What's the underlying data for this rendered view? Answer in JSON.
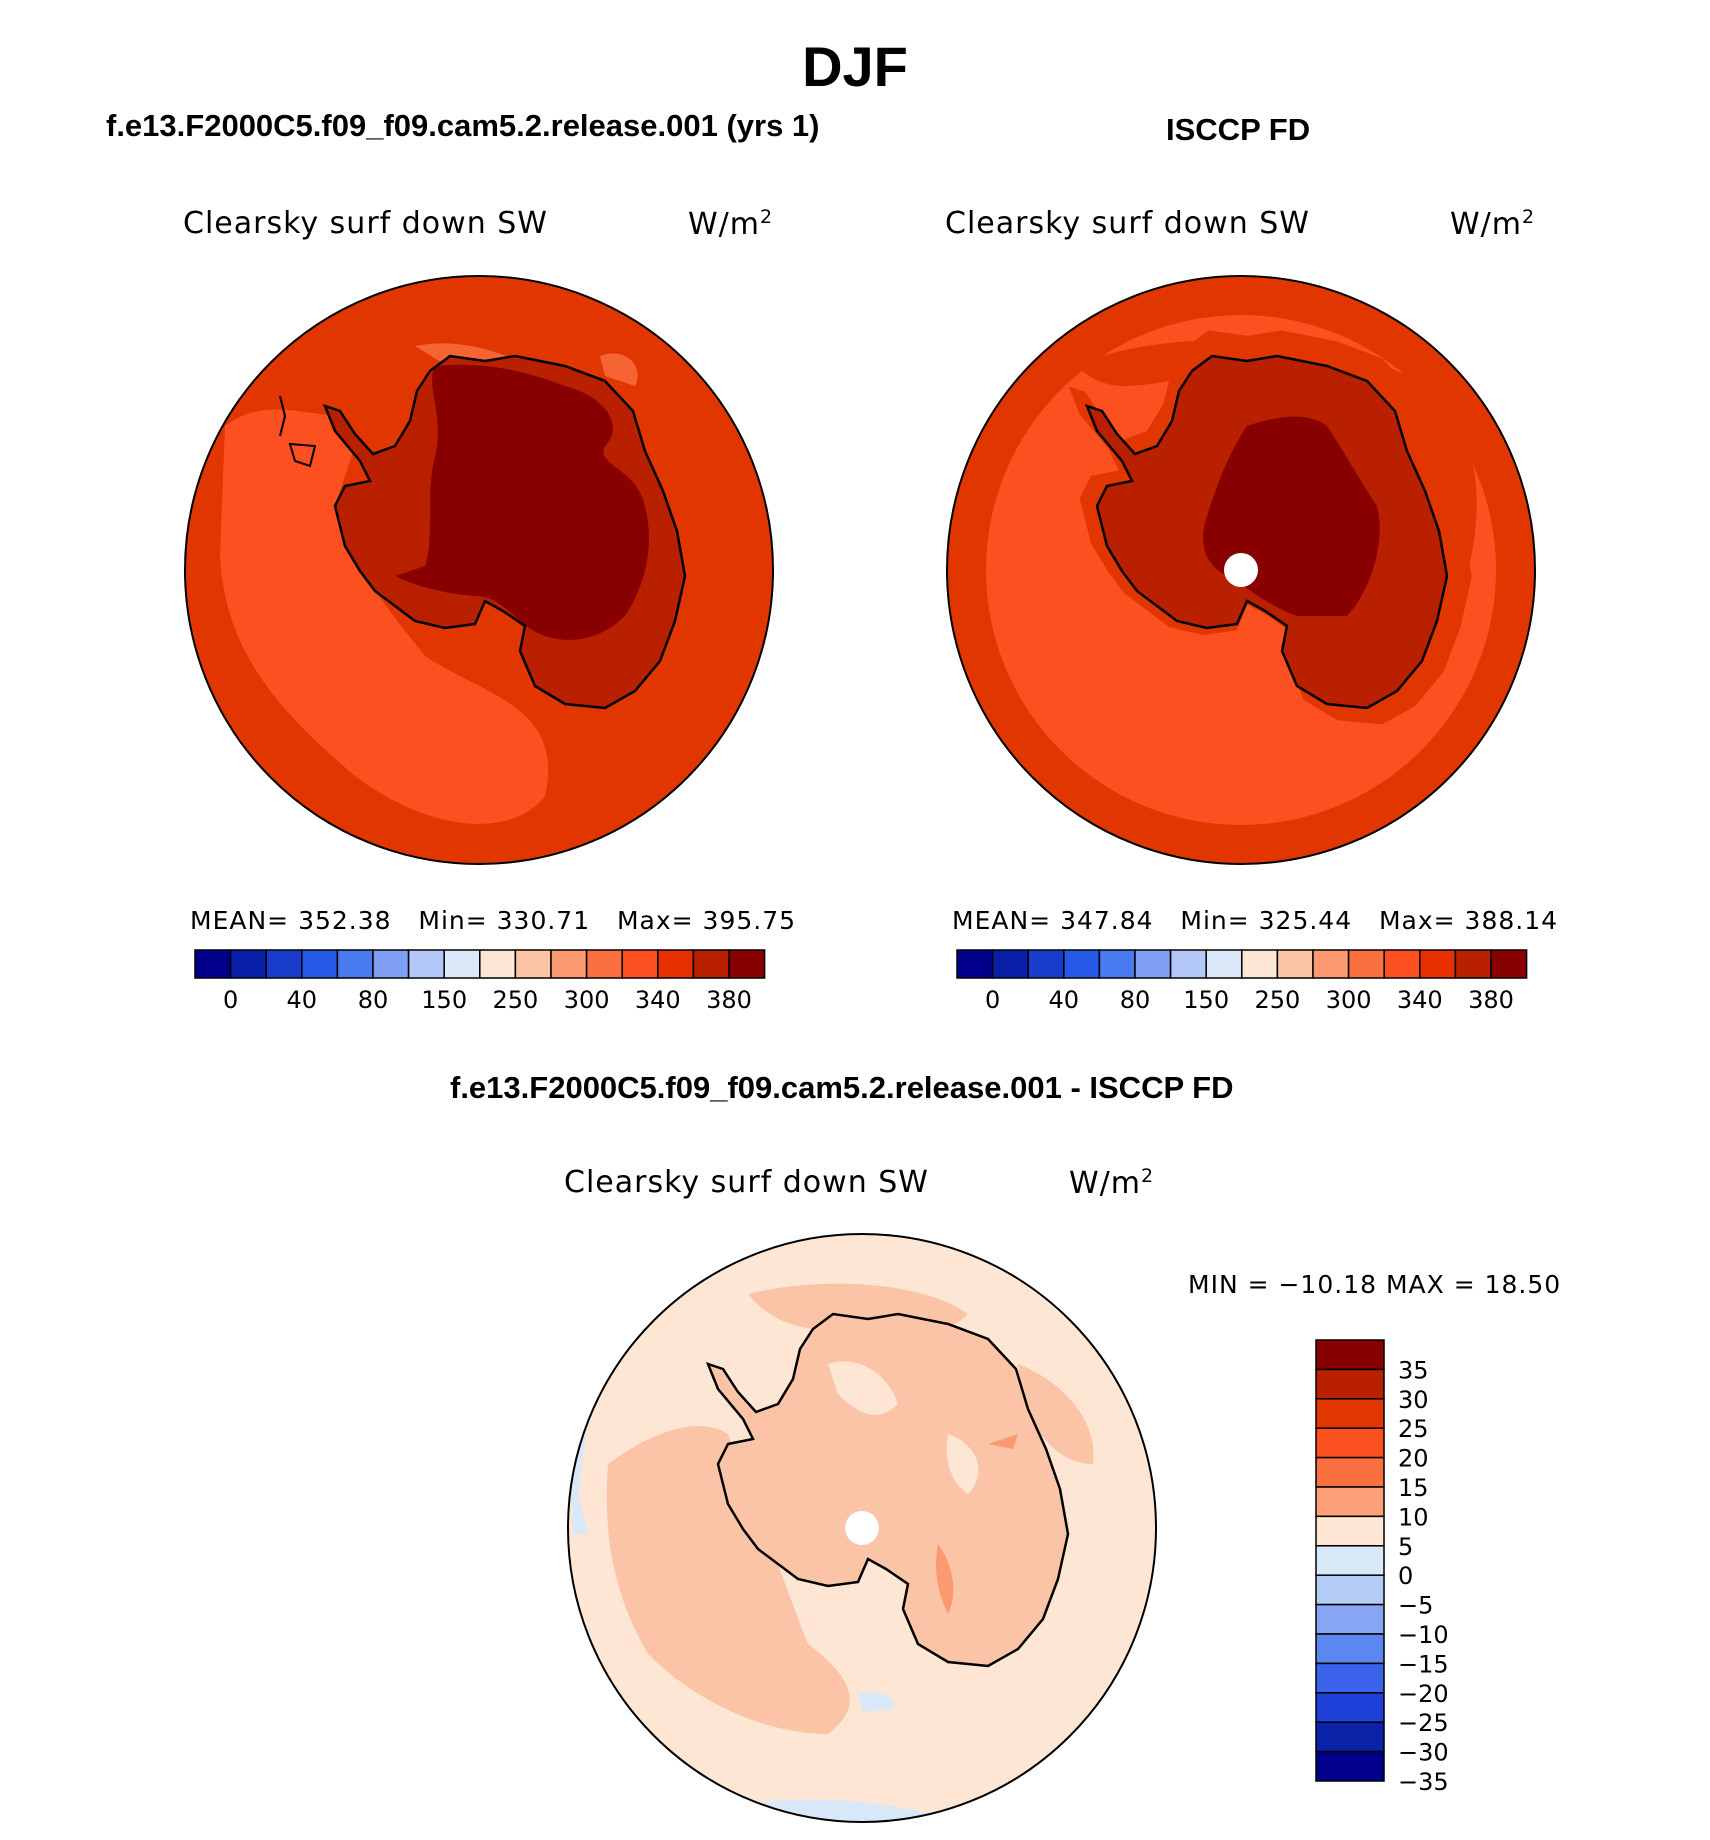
{
  "title": "DJF",
  "panels": [
    {
      "id": "model",
      "title": "f.e13.F2000C5.f09_f09.cam5.2.release.001 (yrs 1)",
      "variable": "Clearsky surf down SW",
      "units": "W/m",
      "units_sup": "2",
      "stats": {
        "mean": "MEAN= 352.38",
        "min": "Min= 330.71",
        "max": "Max= 395.75"
      }
    },
    {
      "id": "obs",
      "title": "ISCCP FD",
      "variable": "Clearsky surf down SW",
      "units": "W/m",
      "units_sup": "2",
      "stats": {
        "mean": "MEAN= 347.84",
        "min": "Min= 325.44",
        "max": "Max= 388.14"
      }
    },
    {
      "id": "diff",
      "title": "f.e13.F2000C5.f09_f09.cam5.2.release.001 - ISCCP FD",
      "variable": "Clearsky surf down SW",
      "units": "W/m",
      "units_sup": "2",
      "stats": {
        "minmax": "MIN = −10.18 MAX =  18.50"
      }
    }
  ],
  "colorbar_top": {
    "colors": [
      "#00008b",
      "#0a1fa8",
      "#1a3ccc",
      "#2659e8",
      "#4a7af0",
      "#7f9ff5",
      "#b3c8f7",
      "#dbe8fa",
      "#fde6d4",
      "#fcc4a6",
      "#fb9a70",
      "#fb7040",
      "#fd5020",
      "#e63000",
      "#b82000",
      "#880000"
    ],
    "tick_labels": [
      "0",
      "40",
      "80",
      "150",
      "250",
      "300",
      "340",
      "380"
    ]
  },
  "colorbar_diff": {
    "colors": [
      "#880000",
      "#b82000",
      "#e23600",
      "#fd5020",
      "#fb7040",
      "#fca07a",
      "#fde6d4",
      "#d8e8f8",
      "#b3ccf5",
      "#86a6f3",
      "#5c86f0",
      "#3a62ea",
      "#1f40d8",
      "#0a22a8",
      "#00008b"
    ],
    "tick_labels": [
      "35",
      "30",
      "25",
      "20",
      "15",
      "10",
      "5",
      "0",
      "−5",
      "−10",
      "−15",
      "−20",
      "−25",
      "−30",
      "−35"
    ]
  },
  "colors": {
    "accent_dark": "#880000",
    "ocean_model": "#e23600",
    "ocean_light": "#fd5020",
    "ice_mid": "#b82000"
  }
}
